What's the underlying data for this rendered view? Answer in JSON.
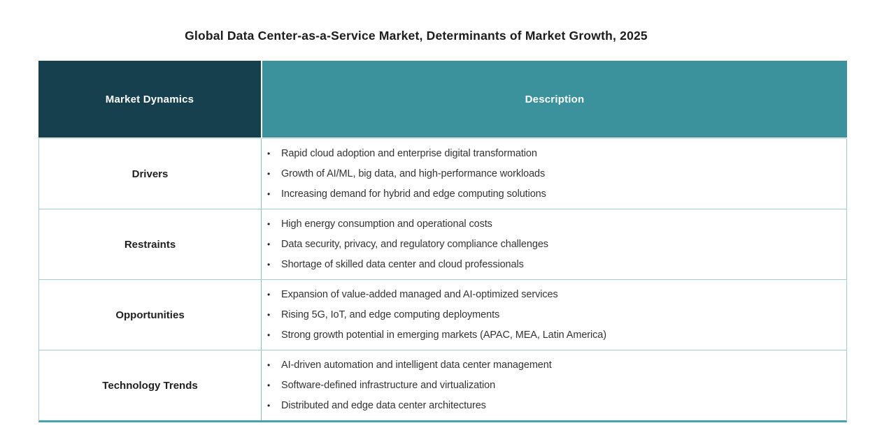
{
  "title": "Global Data Center-as-a-Service Market, Determinants of Market Growth, 2025",
  "bullet_char": "•",
  "colors": {
    "header_dark_cell": "#16404d",
    "header_teal_cell": "#3b929c",
    "header_text": "#ffffff",
    "inner_border": "#a5cad0",
    "bottom_border": "#47a2ac",
    "body_text": "#333333",
    "title_text": "#1c1c1c"
  },
  "table": {
    "columns": [
      "Market Dynamics",
      "Description"
    ],
    "rows": [
      {
        "label": "Drivers",
        "bullets": [
          "Rapid cloud adoption and enterprise digital transformation",
          "Growth of AI/ML, big data, and high-performance workloads",
          "Increasing demand for hybrid and edge computing solutions"
        ]
      },
      {
        "label": "Restraints",
        "bullets": [
          "High energy consumption and operational costs",
          "Data security, privacy, and regulatory compliance challenges",
          "Shortage of skilled data center and cloud professionals"
        ]
      },
      {
        "label": "Opportunities",
        "bullets": [
          "Expansion of value-added managed and AI-optimized services",
          "Rising 5G, IoT, and edge computing deployments",
          "Strong growth potential in emerging markets (APAC, MEA, Latin America)"
        ]
      },
      {
        "label": "Technology Trends",
        "bullets": [
          "AI-driven automation and intelligent data center management",
          "Software-defined infrastructure and virtualization",
          "Distributed and edge data center architectures"
        ]
      }
    ]
  }
}
